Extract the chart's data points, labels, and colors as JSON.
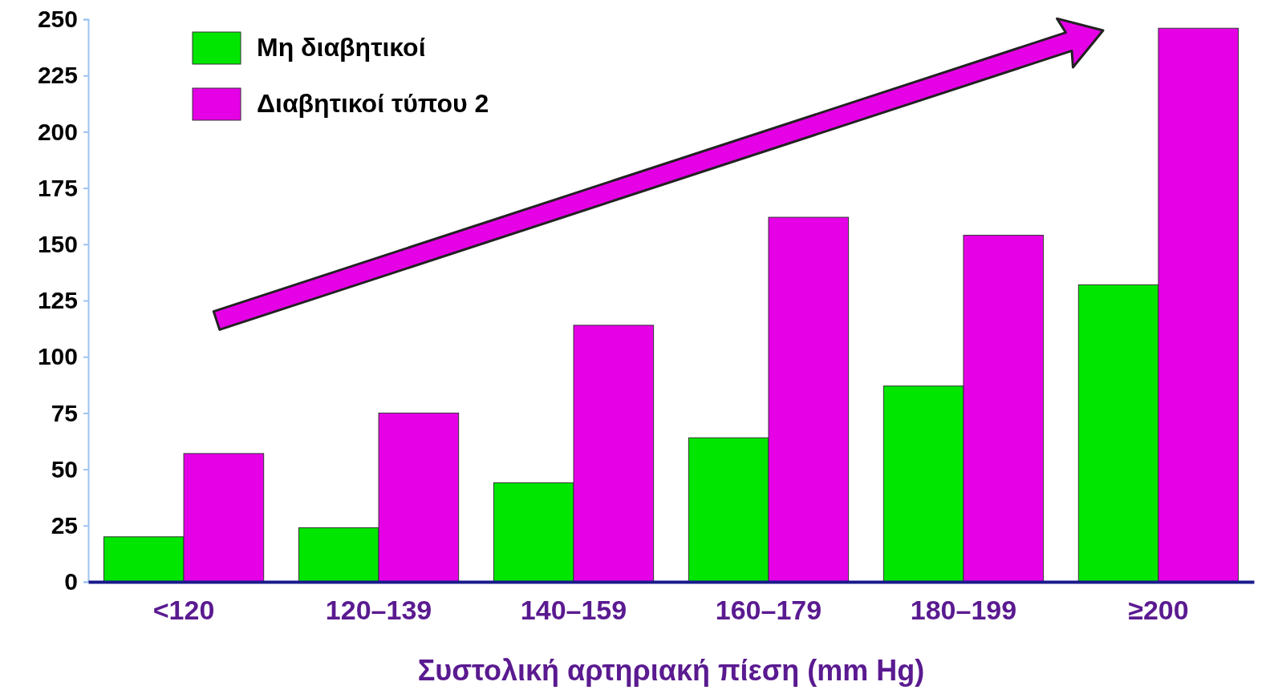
{
  "chart_data": {
    "type": "bar",
    "xlabel": "Συστολική αρτηριακή πίεση (mm Hg)",
    "categories": [
      "<120",
      "120–139",
      "140–159",
      "160–179",
      "180–199",
      "≥200"
    ],
    "series": [
      {
        "name": "Μη διαβητικοί",
        "color": "#00e600",
        "values": [
          20,
          24,
          44,
          64,
          87,
          132
        ]
      },
      {
        "name": "Διαβητικοί τύπου 2",
        "color": "#e600e6",
        "values": [
          57,
          75,
          114,
          162,
          154,
          246
        ]
      }
    ],
    "ylim": [
      0,
      250
    ],
    "yticks": [
      0,
      25,
      50,
      75,
      100,
      125,
      150,
      175,
      200,
      225,
      250
    ],
    "grid": false,
    "legend": "top left"
  }
}
